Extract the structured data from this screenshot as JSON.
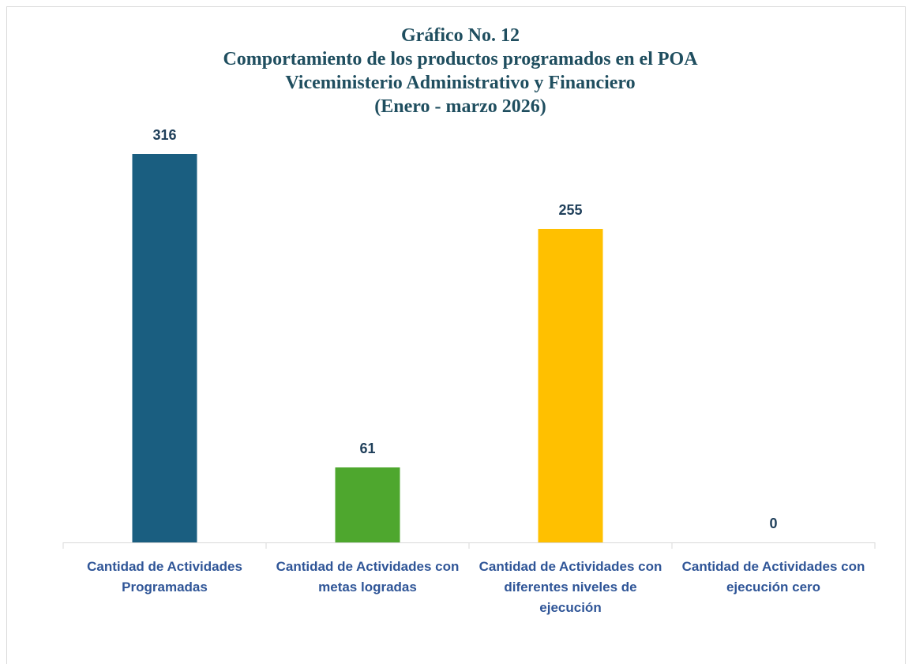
{
  "chart_data": {
    "type": "bar",
    "title": "Gráfico No. 12",
    "subtitle": [
      "Comportamiento de los productos programados en el POA",
      "Viceministerio Administrativo y Financiero",
      "(Enero - marzo 2026)"
    ],
    "categories": [
      "Cantidad de Actividades Programadas",
      "Cantidad de Actividades con metas logradas",
      "Cantidad de Actividades con diferentes niveles de ejecución",
      "Cantidad de Actividades con ejecución cero"
    ],
    "values": [
      316,
      61,
      255,
      0
    ],
    "colors": [
      "#1a5e80",
      "#4ea72e",
      "#ffc000",
      "#1a5e80"
    ]
  }
}
